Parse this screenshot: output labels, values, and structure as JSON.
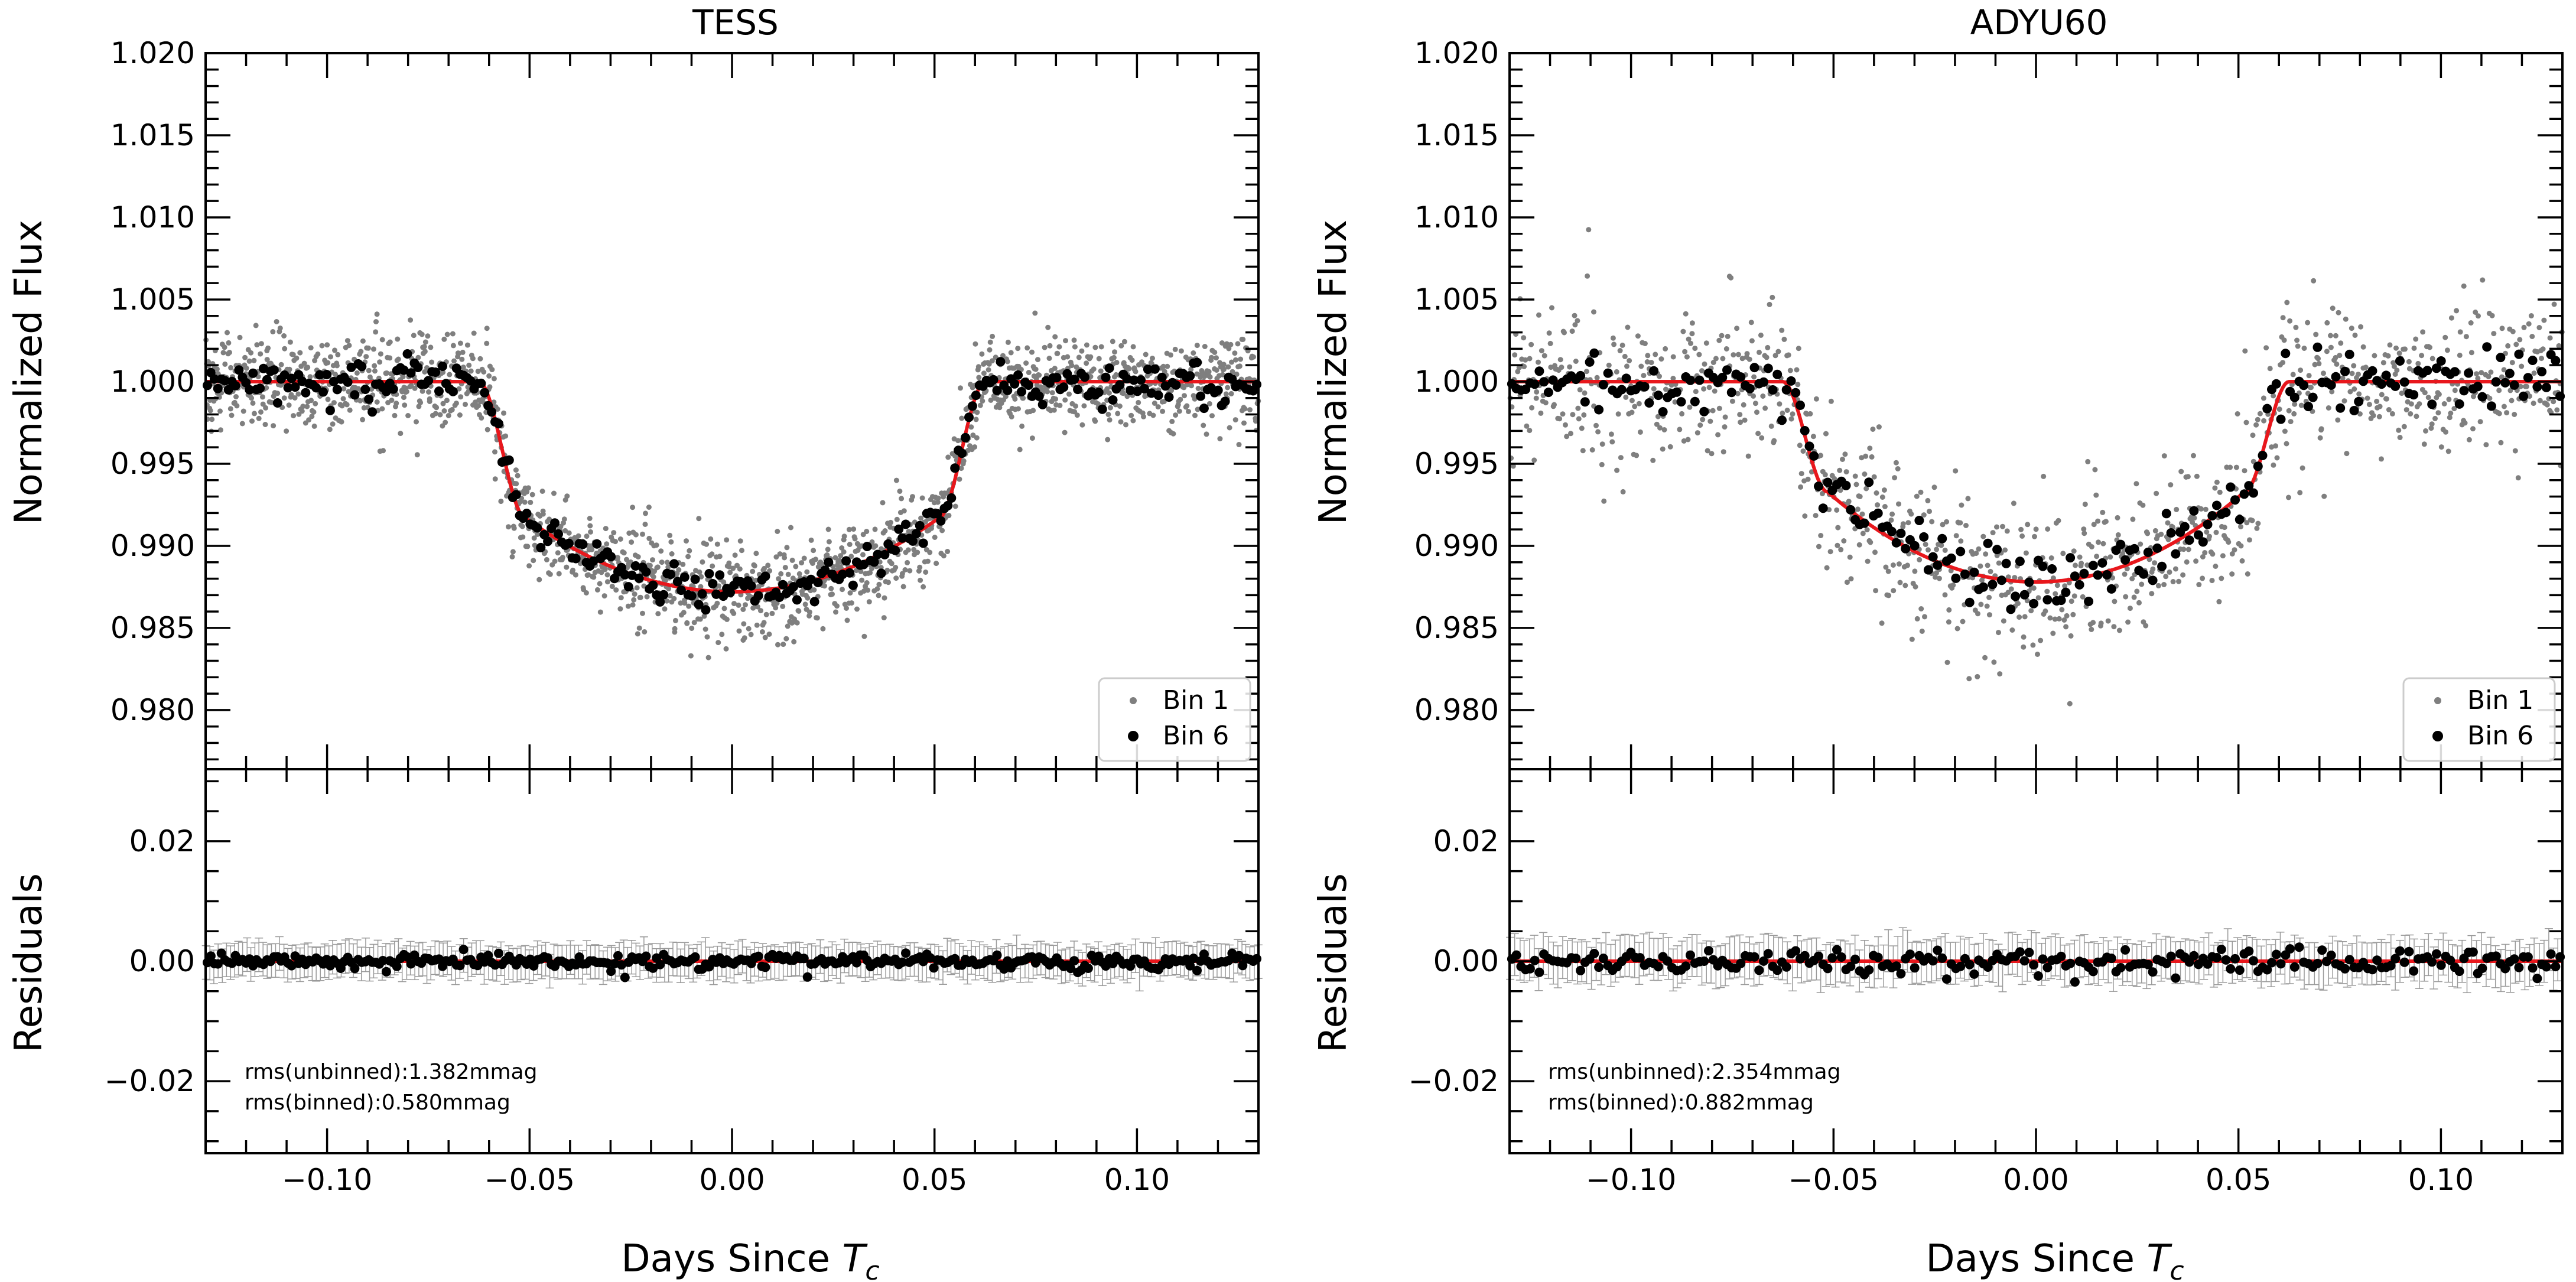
{
  "chart_data": [
    {
      "type": "scatter",
      "panel": "left",
      "title": "TESS",
      "xlabel_text": "Days Since ",
      "xlabel_sym": "T",
      "xlabel_sub": "c",
      "ylabel_top": "Normalized Flux",
      "ylabel_bottom": "Residuals",
      "xlim": [
        -0.13,
        0.13
      ],
      "ylim_top": [
        0.9764,
        1.02
      ],
      "ylim_bottom": [
        -0.032,
        0.032
      ],
      "xticks": [
        -0.1,
        -0.05,
        0.0,
        0.05,
        0.1
      ],
      "xtick_labels": [
        "−0.10",
        "−0.05",
        "0.00",
        "0.05",
        "0.10"
      ],
      "yticks_top": [
        0.98,
        0.985,
        0.99,
        0.995,
        1.0,
        1.005,
        1.01,
        1.015,
        1.02
      ],
      "ytick_labels_top": [
        "0.980",
        "0.985",
        "0.990",
        "0.995",
        "1.000",
        "1.005",
        "1.010",
        "1.015",
        "1.020"
      ],
      "yticks_bottom": [
        -0.02,
        0.0,
        0.02
      ],
      "ytick_labels_bottom": [
        "−0.02",
        "0.00",
        "0.02"
      ],
      "legend": [
        "Bin 1",
        "Bin 6"
      ],
      "rms_unbinned": "rms(unbinned):1.382mmag",
      "rms_binned": "rms(binned):0.580mmag",
      "model": {
        "depth": 0.0128,
        "t14_half": 0.0625,
        "ingress": 0.0115,
        "limb": 0.35
      },
      "noise_unbinned": 0.0014,
      "noise_binned": 0.0006,
      "n_unbinned": 1800,
      "n_binned": 300,
      "err_bar": 0.0028,
      "series_colors": {
        "unbinned": "#7f7f7f",
        "binned": "#000000",
        "model": "#e8171c"
      }
    },
    {
      "type": "scatter",
      "panel": "right",
      "title": "ADYU60",
      "xlabel_text": "Days Since ",
      "xlabel_sym": "T",
      "xlabel_sub": "c",
      "ylabel_top": "Normalized Flux",
      "ylabel_bottom": "Residuals",
      "xlim": [
        -0.13,
        0.13
      ],
      "ylim_top": [
        0.9764,
        1.02
      ],
      "ylim_bottom": [
        -0.032,
        0.032
      ],
      "xticks": [
        -0.1,
        -0.05,
        0.0,
        0.05,
        0.1
      ],
      "xtick_labels": [
        "−0.10",
        "−0.05",
        "0.00",
        "0.05",
        "0.10"
      ],
      "yticks_top": [
        0.98,
        0.985,
        0.99,
        0.995,
        1.0,
        1.005,
        1.01,
        1.015,
        1.02
      ],
      "ytick_labels_top": [
        "0.980",
        "0.985",
        "0.990",
        "0.995",
        "1.000",
        "1.005",
        "1.010",
        "1.015",
        "1.020"
      ],
      "yticks_bottom": [
        -0.02,
        0.0,
        0.02
      ],
      "ytick_labels_bottom": [
        "−0.02",
        "0.00",
        "0.02"
      ],
      "legend": [
        "Bin 1",
        "Bin 6"
      ],
      "rms_unbinned": "rms(unbinned):2.354mmag",
      "rms_binned": "rms(binned):0.882mmag",
      "model": {
        "depth": 0.0122,
        "t14_half": 0.0625,
        "ingress": 0.011,
        "limb": 0.45
      },
      "noise_unbinned": 0.0024,
      "noise_binned": 0.0009,
      "n_unbinned": 1100,
      "n_binned": 230,
      "err_bar": 0.0035,
      "series_colors": {
        "unbinned": "#7f7f7f",
        "binned": "#000000",
        "model": "#e8171c"
      }
    }
  ]
}
